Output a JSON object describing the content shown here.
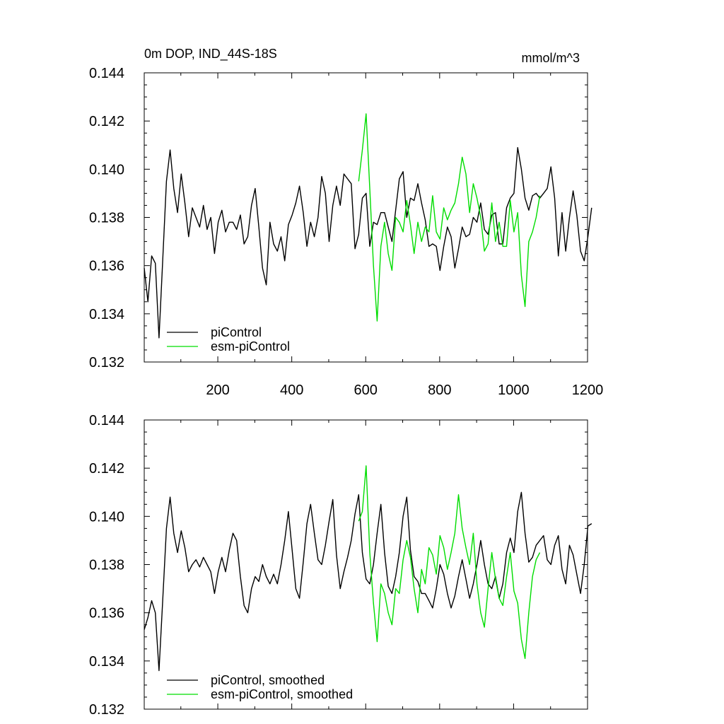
{
  "chart_data": [
    {
      "type": "line",
      "title": "0m DOP, IND_44S-18S",
      "units": "mmol/m^3",
      "xlim": [
        1,
        1200
      ],
      "ylim": [
        0.132,
        0.144
      ],
      "xticks": [
        200,
        400,
        600,
        800,
        1000,
        1200
      ],
      "xtick_labels": [
        "200",
        "400",
        "600",
        "800",
        "1000",
        "1200"
      ],
      "yticks": [
        0.132,
        0.134,
        0.136,
        0.138,
        0.14,
        0.142,
        0.144
      ],
      "ytick_labels": [
        "0.132",
        "0.134",
        "0.136",
        "0.138",
        "0.140",
        "0.142",
        "0.144"
      ],
      "legend_position": "bottom-left",
      "series": [
        {
          "name": "piControl",
          "color": "#000000",
          "x_start": 1,
          "x_step": 10,
          "values": [
            0.1359,
            0.1345,
            0.1364,
            0.1361,
            0.133,
            0.1362,
            0.1395,
            0.1408,
            0.1392,
            0.1382,
            0.1398,
            0.1386,
            0.1372,
            0.1384,
            0.138,
            0.1376,
            0.1385,
            0.1375,
            0.138,
            0.1365,
            0.1378,
            0.1383,
            0.1374,
            0.1378,
            0.1378,
            0.1375,
            0.1381,
            0.1369,
            0.1372,
            0.1385,
            0.1392,
            0.1376,
            0.1359,
            0.1352,
            0.1378,
            0.1369,
            0.1366,
            0.1372,
            0.1362,
            0.1377,
            0.1381,
            0.1386,
            0.1393,
            0.1382,
            0.1368,
            0.1378,
            0.1372,
            0.138,
            0.1397,
            0.139,
            0.137,
            0.1385,
            0.1393,
            0.1385,
            0.1398,
            0.1396,
            0.1394,
            0.1367,
            0.1373,
            0.1388,
            0.139,
            0.1368,
            0.1378,
            0.1377,
            0.1382,
            0.1382,
            0.1376,
            0.137,
            0.1383,
            0.1396,
            0.1399,
            0.138,
            0.1388,
            0.1387,
            0.1394,
            0.1386,
            0.1379,
            0.1368,
            0.1369,
            0.1368,
            0.1358,
            0.1368,
            0.1376,
            0.1372,
            0.1359,
            0.1367,
            0.1376,
            0.1372,
            0.1373,
            0.138,
            0.1378,
            0.1386,
            0.1375,
            0.1373,
            0.1381,
            0.1382,
            0.1369,
            0.1369,
            0.1384,
            0.1388,
            0.139,
            0.1409,
            0.14,
            0.1388,
            0.1383,
            0.1389,
            0.139,
            0.1388,
            0.139,
            0.1392,
            0.1401,
            0.1388,
            0.1364,
            0.1382,
            0.1366,
            0.138,
            0.1391,
            0.1381,
            0.1366,
            0.1362,
            0.1372,
            0.1384
          ]
        },
        {
          "name": "esm-piControl",
          "color": "#00dd00",
          "x_start": 581,
          "x_step": 10,
          "values": [
            0.1395,
            0.1408,
            0.1423,
            0.1392,
            0.136,
            0.1337,
            0.1368,
            0.1378,
            0.1365,
            0.1358,
            0.138,
            0.1378,
            0.1374,
            0.1387,
            0.1377,
            0.1365,
            0.1378,
            0.137,
            0.1376,
            0.1374,
            0.1389,
            0.1374,
            0.1371,
            0.1384,
            0.1379,
            0.1383,
            0.1386,
            0.1394,
            0.1405,
            0.1398,
            0.1382,
            0.1394,
            0.1388,
            0.138,
            0.1366,
            0.1369,
            0.1386,
            0.137,
            0.1378,
            0.1368,
            0.1368,
            0.1387,
            0.1374,
            0.1382,
            0.1356,
            0.1343,
            0.137,
            0.1374,
            0.138,
            0.1389
          ]
        }
      ]
    },
    {
      "type": "line",
      "xlim": [
        1,
        1200
      ],
      "ylim": [
        0.132,
        0.144
      ],
      "xticks": [
        200,
        400,
        600,
        800,
        1000,
        1200
      ],
      "yticks": [
        0.132,
        0.134,
        0.136,
        0.138,
        0.14,
        0.142,
        0.144
      ],
      "ytick_labels": [
        "0.132",
        "0.134",
        "0.136",
        "0.138",
        "0.140",
        "0.142",
        "0.144"
      ],
      "legend_position": "bottom-left",
      "series": [
        {
          "name": "piControl, smoothed",
          "color": "#000000",
          "x_start": 1,
          "x_step": 10,
          "values": [
            0.1353,
            0.1358,
            0.1365,
            0.136,
            0.1336,
            0.1365,
            0.1395,
            0.1408,
            0.1393,
            0.1385,
            0.1394,
            0.1387,
            0.1377,
            0.138,
            0.1382,
            0.1379,
            0.1383,
            0.138,
            0.1377,
            0.1368,
            0.1377,
            0.1383,
            0.1377,
            0.1386,
            0.1393,
            0.139,
            0.1375,
            0.1363,
            0.136,
            0.137,
            0.1375,
            0.1373,
            0.138,
            0.1375,
            0.1372,
            0.1376,
            0.1372,
            0.138,
            0.139,
            0.1402,
            0.1386,
            0.137,
            0.1366,
            0.1381,
            0.1397,
            0.1405,
            0.1393,
            0.1382,
            0.138,
            0.1388,
            0.1398,
            0.1407,
            0.1384,
            0.137,
            0.1377,
            0.1383,
            0.139,
            0.1401,
            0.1409,
            0.1385,
            0.1374,
            0.1372,
            0.138,
            0.1393,
            0.1405,
            0.1385,
            0.1371,
            0.1368,
            0.1375,
            0.1385,
            0.14,
            0.1408,
            0.1386,
            0.1375,
            0.1373,
            0.1368,
            0.1368,
            0.1365,
            0.1362,
            0.137,
            0.138,
            0.1376,
            0.1368,
            0.1362,
            0.1367,
            0.1375,
            0.1382,
            0.1374,
            0.1366,
            0.1372,
            0.138,
            0.139,
            0.138,
            0.1372,
            0.137,
            0.1375,
            0.1366,
            0.1372,
            0.1385,
            0.1391,
            0.1385,
            0.1402,
            0.141,
            0.1393,
            0.1381,
            0.1383,
            0.1388,
            0.139,
            0.1392,
            0.1382,
            0.138,
            0.1388,
            0.1392,
            0.1378,
            0.1372,
            0.1388,
            0.1384,
            0.1376,
            0.1368,
            0.138,
            0.1396,
            0.1397
          ]
        },
        {
          "name": "esm-piControl, smoothed",
          "color": "#00dd00",
          "x_start": 581,
          "x_step": 10,
          "values": [
            0.1398,
            0.1402,
            0.1421,
            0.1385,
            0.1364,
            0.1348,
            0.1372,
            0.1368,
            0.136,
            0.1355,
            0.137,
            0.1368,
            0.1382,
            0.139,
            0.1383,
            0.137,
            0.136,
            0.1378,
            0.1372,
            0.1387,
            0.1384,
            0.1376,
            0.1392,
            0.1387,
            0.1378,
            0.1385,
            0.1393,
            0.1409,
            0.1395,
            0.1387,
            0.138,
            0.1393,
            0.1372,
            0.136,
            0.1354,
            0.137,
            0.1385,
            0.1374,
            0.1366,
            0.1363,
            0.1375,
            0.1385,
            0.1369,
            0.1364,
            0.1349,
            0.1341,
            0.136,
            0.1375,
            0.1382,
            0.1385
          ]
        }
      ]
    }
  ]
}
